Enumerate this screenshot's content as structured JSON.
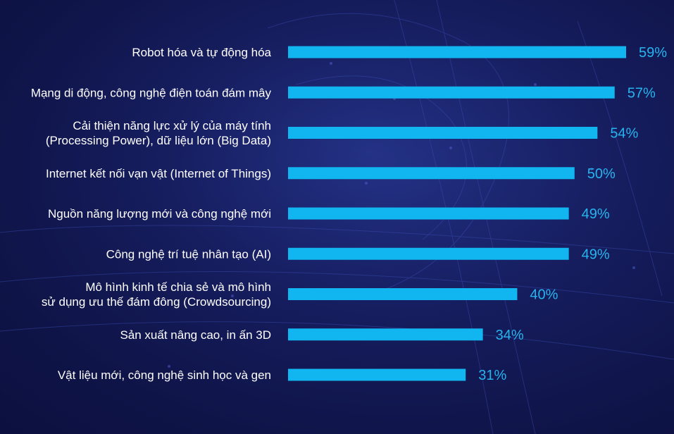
{
  "chart_data": {
    "type": "bar",
    "orientation": "horizontal",
    "categories": [
      [
        "Robot hóa và tự động hóa"
      ],
      [
        "Mạng di động, công nghệ điện toán đám mây"
      ],
      [
        "Cải thiện năng lực xử lý của máy tính",
        "(Processing Power), dữ liệu lớn (Big Data)"
      ],
      [
        "Internet kết nối vạn vật (Internet of Things)"
      ],
      [
        "Nguồn năng lượng mới và công nghệ mới"
      ],
      [
        "Công nghệ trí tuệ nhân tạo (AI)"
      ],
      [
        "Mô hình kinh tế chia sẻ và mô hình",
        "sử dụng ưu thế đám đông (Crowdsourcing)"
      ],
      [
        "Sản xuất nâng cao, in ấn 3D"
      ],
      [
        "Vật liệu mới, công nghệ sinh học và gen"
      ]
    ],
    "values": [
      59,
      57,
      54,
      50,
      49,
      49,
      40,
      34,
      31
    ],
    "value_labels": [
      "59%",
      "57%",
      "54%",
      "50%",
      "49%",
      "49%",
      "40%",
      "34%",
      "31%"
    ],
    "unit": "%",
    "xlim": [
      0,
      100
    ],
    "grid": false,
    "legend": "none",
    "colors": {
      "bar": "#11b5f0",
      "value_label": "#27b4ee",
      "category_label": "#ffffff",
      "background": "#151c5c"
    }
  }
}
